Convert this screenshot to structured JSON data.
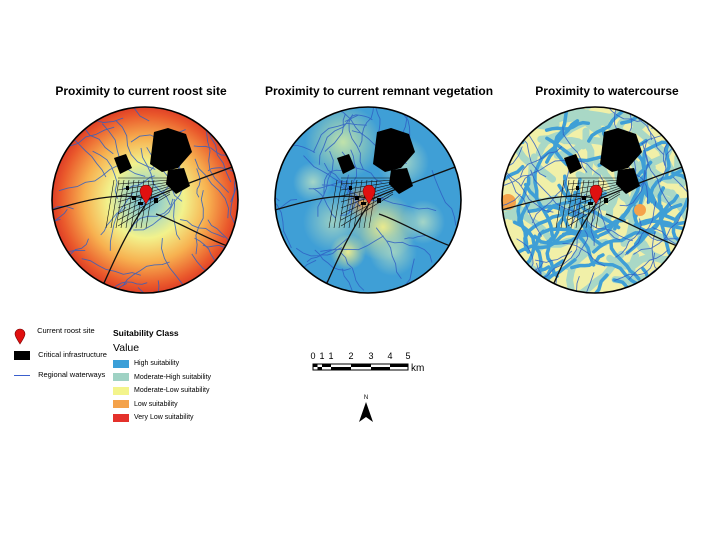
{
  "panels": [
    {
      "title": "Proximity to current roost site",
      "scheme": "roost"
    },
    {
      "title": "Proximity to current remnant vegetation",
      "scheme": "veg"
    },
    {
      "title": "Proximity to watercourse",
      "scheme": "water"
    }
  ],
  "legend": {
    "roost_label": "Current roost site",
    "infra_label": "Critical infrastructure",
    "waterways_label": "Regional waterways",
    "roost_color": "#e01010",
    "infra_color": "#000000",
    "waterway_color": "#3a5fcd"
  },
  "suitability": {
    "heading": "Suitability Class",
    "value_label": "Value",
    "classes": [
      {
        "label": "High suitability",
        "color": "#3b9fd8"
      },
      {
        "label": "Moderate-High suitability",
        "color": "#9fd2c4"
      },
      {
        "label": "Moderate-Low suitability",
        "color": "#f3f48c"
      },
      {
        "label": "Low suitability",
        "color": "#f4a24a"
      },
      {
        "label": "Very Low suitability",
        "color": "#e4312b"
      }
    ]
  },
  "scale_bar": {
    "ticks": [
      "0",
      "1",
      "1",
      "2",
      "3",
      "4",
      "5"
    ],
    "unit": "km"
  },
  "north_arrow": {
    "label": "N"
  }
}
